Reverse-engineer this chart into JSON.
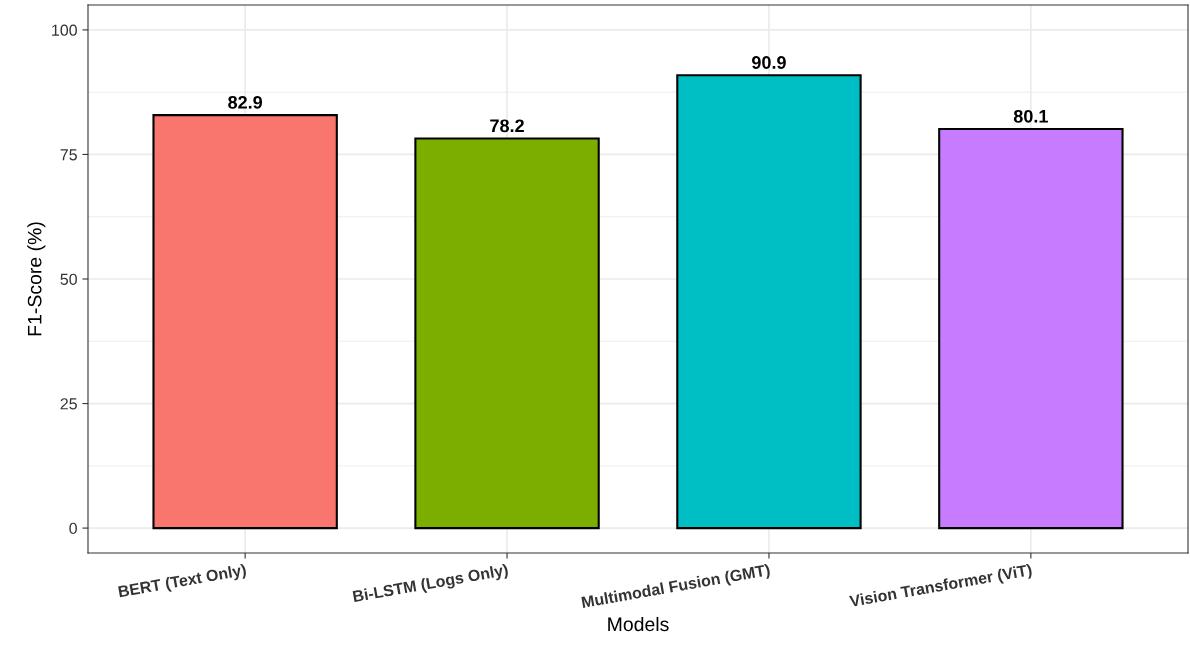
{
  "chart_data": {
    "type": "bar",
    "xlabel": "Models",
    "ylabel": "F1-Score (%)",
    "categories": [
      "BERT (Text Only)",
      "Bi-LSTM (Logs Only)",
      "Multimodal Fusion (GMT)",
      "Vision Transformer (ViT)"
    ],
    "values": [
      82.9,
      78.2,
      90.9,
      80.1
    ],
    "colors": [
      "#f8766d",
      "#7cae00",
      "#00bfc4",
      "#c77cff"
    ],
    "ylim": [
      -5,
      105
    ],
    "yticks": [
      0,
      25,
      50,
      75,
      100
    ],
    "grid": true,
    "data_labels": true
  }
}
